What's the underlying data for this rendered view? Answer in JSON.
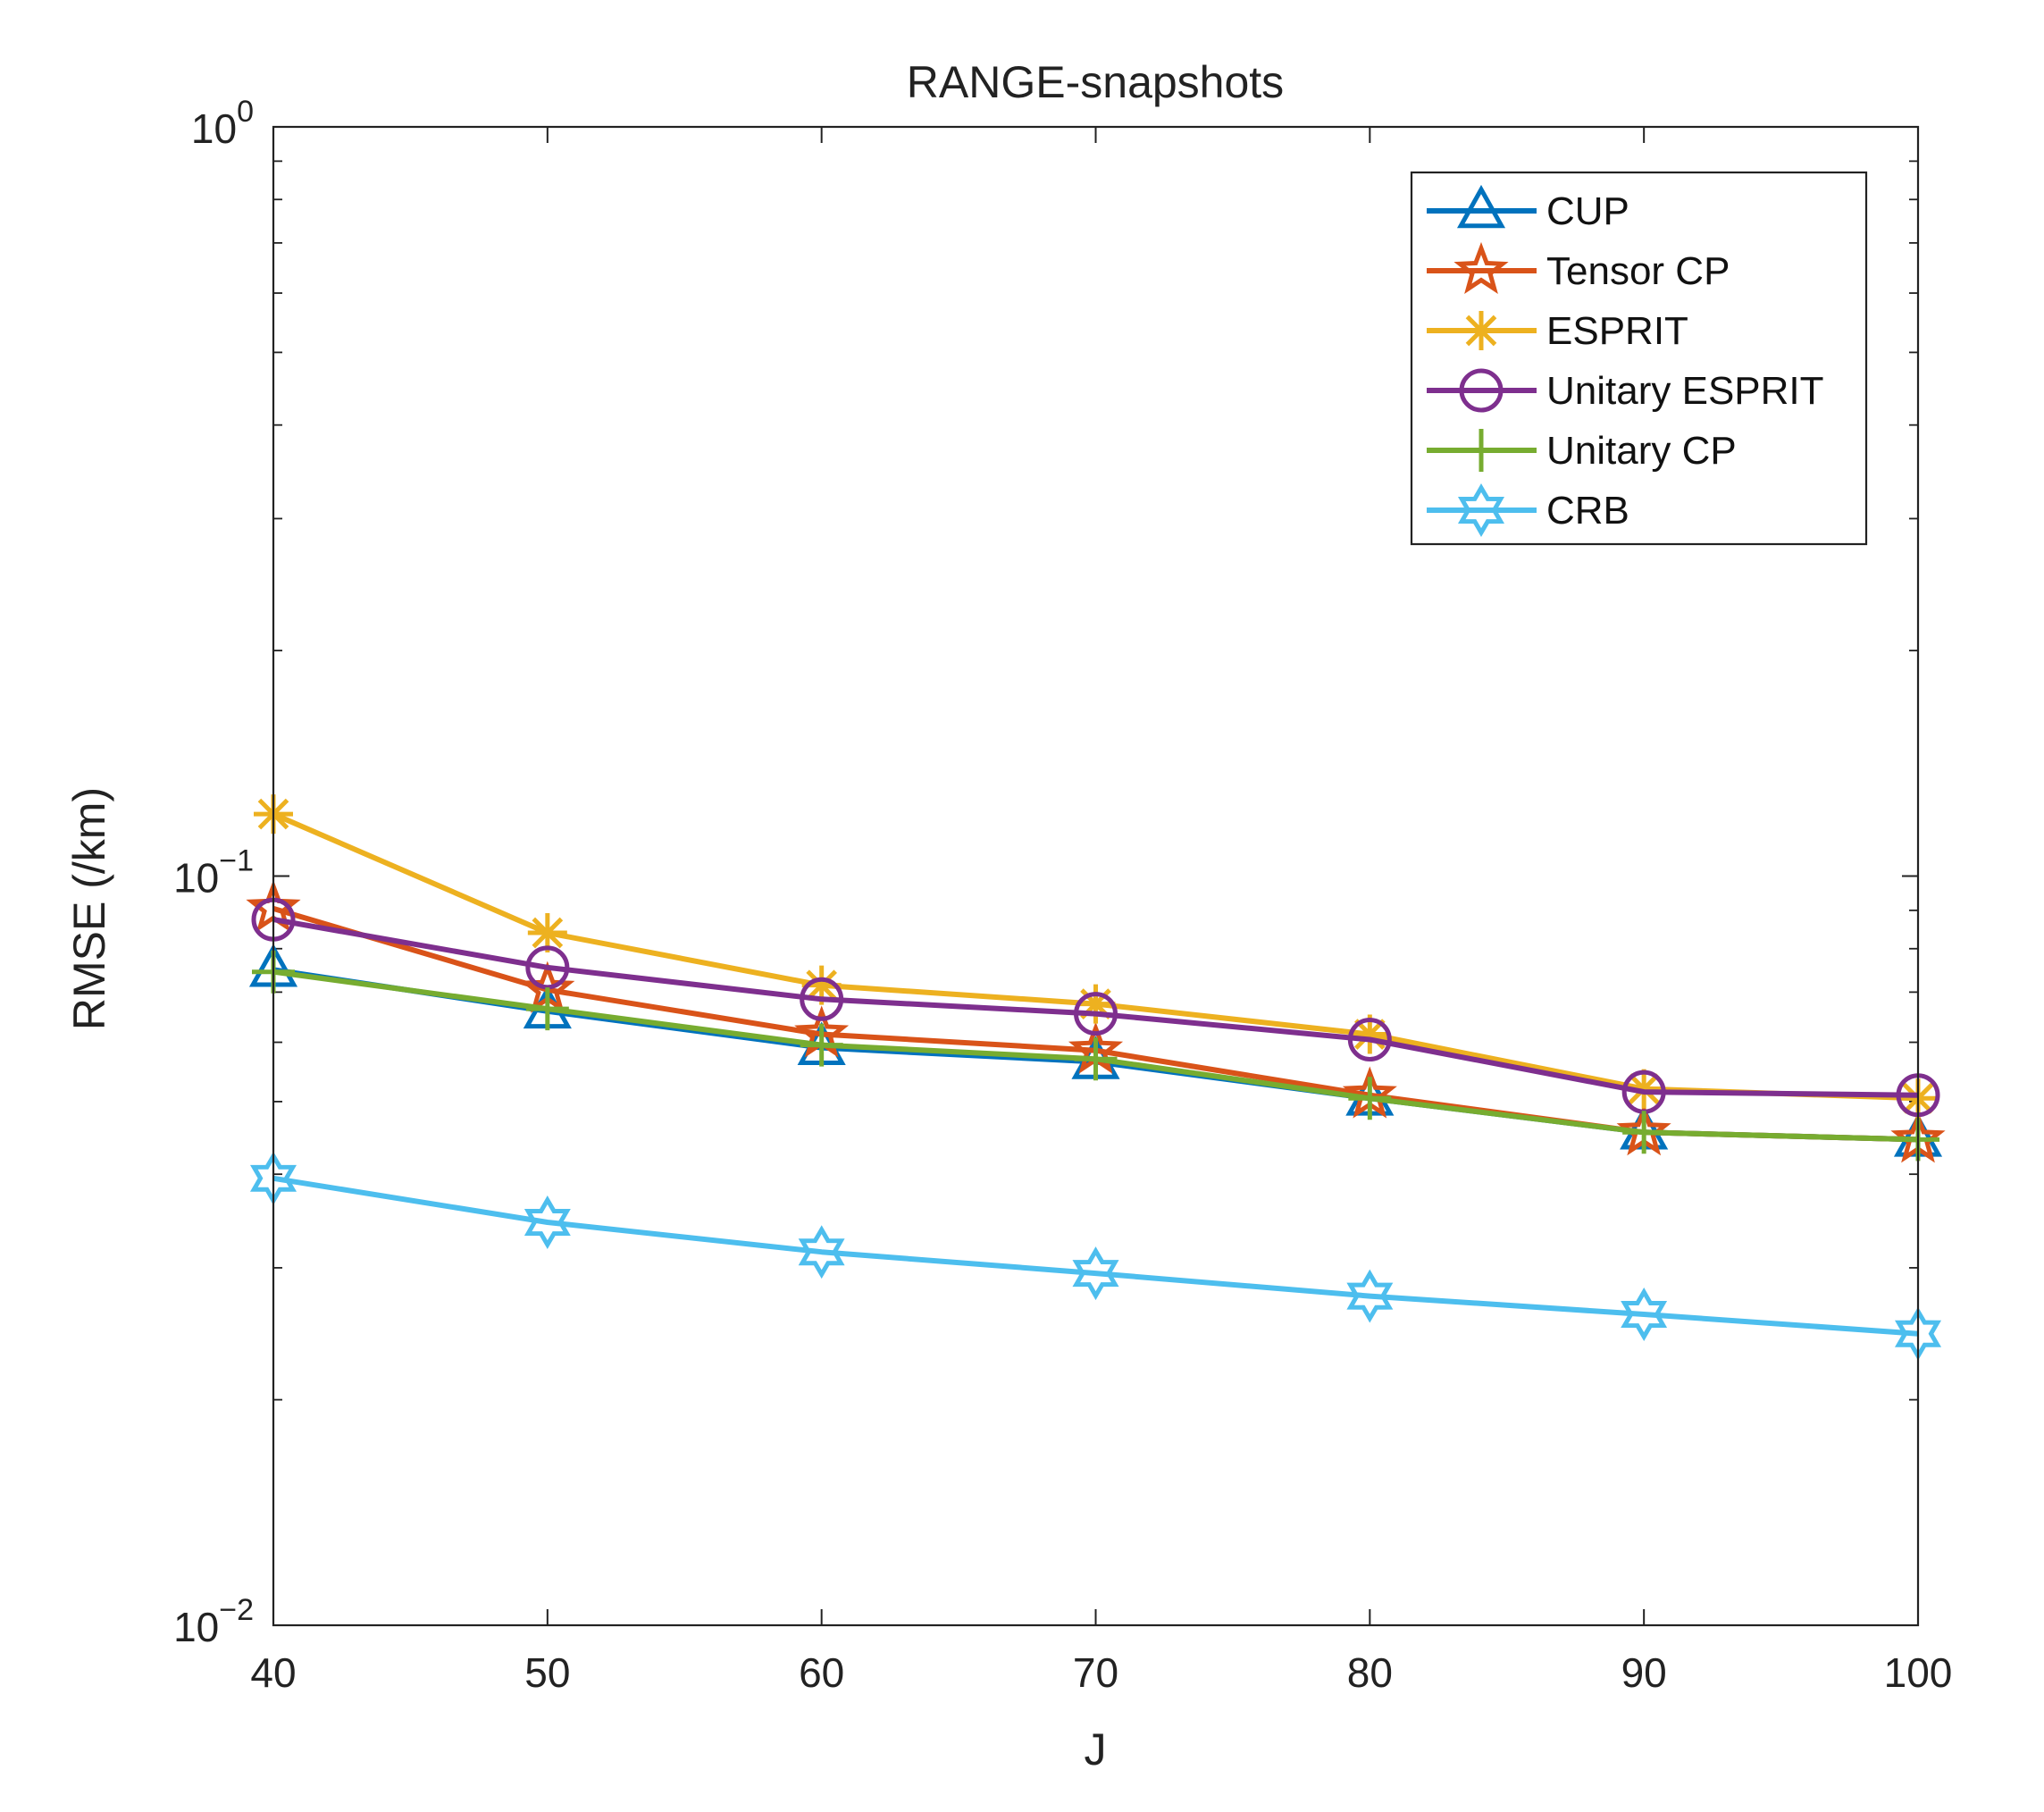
{
  "chart_data": {
    "type": "line",
    "title": "RANGE-snapshots",
    "xlabel": "J",
    "ylabel": "RMSE (/km)",
    "xscale": "linear",
    "yscale": "log",
    "xlim": [
      40,
      100
    ],
    "ylim": [
      0.01,
      1
    ],
    "x": [
      40,
      50,
      60,
      70,
      80,
      90,
      100
    ],
    "x_ticks": [
      "40",
      "50",
      "60",
      "70",
      "80",
      "90",
      "100"
    ],
    "y_ticks": [
      {
        "value": 1,
        "base": "10",
        "exp": "0"
      },
      {
        "value": 0.1,
        "base": "10",
        "exp": "−1"
      },
      {
        "value": 0.01,
        "base": "10",
        "exp": "−2"
      }
    ],
    "grid": false,
    "legend_position": "top-right",
    "series": [
      {
        "name": "CUP",
        "color": "#0072BD",
        "marker": "triangle",
        "values": [
          0.075,
          0.066,
          0.059,
          0.0565,
          0.0505,
          0.0455,
          0.0445
        ]
      },
      {
        "name": "Tensor CP",
        "color": "#D95319",
        "marker": "star5",
        "values": [
          0.0905,
          0.0705,
          0.0615,
          0.0585,
          0.051,
          0.0455,
          0.0445
        ]
      },
      {
        "name": "ESPRIT",
        "color": "#EDB120",
        "marker": "asterisk",
        "values": [
          0.121,
          0.084,
          0.0715,
          0.0675,
          0.0615,
          0.052,
          0.0505
        ]
      },
      {
        "name": "Unitary ESPRIT",
        "color": "#7E2F8E",
        "marker": "circle",
        "values": [
          0.0875,
          0.0755,
          0.0685,
          0.0655,
          0.0605,
          0.0515,
          0.051
        ]
      },
      {
        "name": "Unitary CP",
        "color": "#77AC30",
        "marker": "plus",
        "values": [
          0.0745,
          0.0665,
          0.0595,
          0.057,
          0.0505,
          0.0455,
          0.0445
        ]
      },
      {
        "name": "CRB",
        "color": "#4DBEEE",
        "marker": "hexagram",
        "values": [
          0.0395,
          0.0345,
          0.0315,
          0.0295,
          0.0275,
          0.026,
          0.0245
        ]
      }
    ]
  }
}
